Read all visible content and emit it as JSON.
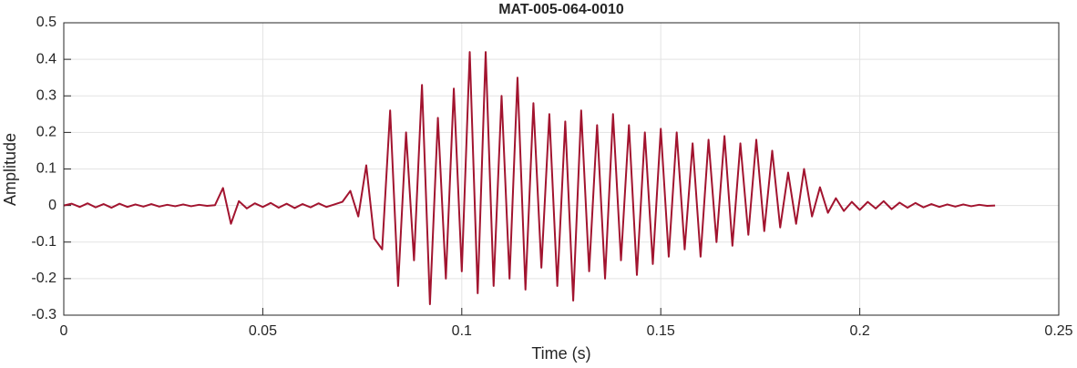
{
  "chart_data": {
    "type": "line",
    "title": "MAT-005-064-0010",
    "xlabel": "Time (s)",
    "ylabel": "Amplitude",
    "x": [
      0,
      0.002,
      0.004,
      0.006,
      0.008,
      0.01,
      0.012,
      0.014,
      0.016,
      0.018,
      0.02,
      0.022,
      0.024,
      0.026,
      0.028,
      0.03,
      0.032,
      0.034,
      0.036,
      0.038,
      0.04,
      0.042,
      0.044,
      0.046,
      0.048,
      0.05,
      0.052,
      0.054,
      0.056,
      0.058,
      0.06,
      0.062,
      0.064,
      0.066,
      0.068,
      0.07,
      0.072,
      0.074,
      0.076,
      0.078,
      0.08,
      0.082,
      0.084,
      0.086,
      0.088,
      0.09,
      0.092,
      0.094,
      0.096,
      0.098,
      0.1,
      0.102,
      0.104,
      0.106,
      0.108,
      0.11,
      0.112,
      0.114,
      0.116,
      0.118,
      0.12,
      0.122,
      0.124,
      0.126,
      0.128,
      0.13,
      0.132,
      0.134,
      0.136,
      0.138,
      0.14,
      0.142,
      0.144,
      0.146,
      0.148,
      0.15,
      0.152,
      0.154,
      0.156,
      0.158,
      0.16,
      0.162,
      0.164,
      0.166,
      0.168,
      0.17,
      0.172,
      0.174,
      0.176,
      0.178,
      0.18,
      0.182,
      0.184,
      0.186,
      0.188,
      0.19,
      0.192,
      0.194,
      0.196,
      0.198,
      0.2,
      0.202,
      0.204,
      0.206,
      0.208,
      0.21,
      0.212,
      0.214,
      0.216,
      0.218,
      0.22,
      0.222,
      0.224,
      0.226,
      0.228,
      0.23,
      0.232,
      0.234
    ],
    "series": [
      {
        "color": "#a2142f",
        "values": [
          0,
          0.005,
          -0.004,
          0.006,
          -0.005,
          0.004,
          -0.006,
          0.005,
          -0.004,
          0.003,
          -0.003,
          0.004,
          -0.003,
          0.002,
          -0.002,
          0.003,
          -0.002,
          0.002,
          -0.001,
          0.001,
          0.048,
          -0.05,
          0.012,
          -0.008,
          0.006,
          -0.004,
          0.007,
          -0.006,
          0.005,
          -0.007,
          0.004,
          -0.005,
          0.006,
          -0.004,
          0.003,
          0.01,
          0.04,
          -0.03,
          0.11,
          -0.09,
          -0.12,
          0.26,
          -0.22,
          0.2,
          -0.15,
          0.33,
          -0.27,
          0.24,
          -0.2,
          0.32,
          -0.18,
          0.42,
          -0.24,
          0.42,
          -0.22,
          0.3,
          -0.2,
          0.35,
          -0.23,
          0.28,
          -0.17,
          0.25,
          -0.22,
          0.23,
          -0.26,
          0.26,
          -0.18,
          0.22,
          -0.2,
          0.25,
          -0.15,
          0.22,
          -0.19,
          0.2,
          -0.16,
          0.21,
          -0.14,
          0.2,
          -0.12,
          0.17,
          -0.14,
          0.18,
          -0.1,
          0.19,
          -0.11,
          0.17,
          -0.08,
          0.18,
          -0.07,
          0.15,
          -0.06,
          0.09,
          -0.05,
          0.1,
          -0.03,
          0.05,
          -0.02,
          0.02,
          -0.015,
          0.01,
          -0.012,
          0.01,
          -0.008,
          0.012,
          -0.01,
          0.008,
          -0.006,
          0.007,
          -0.005,
          0.004,
          -0.004,
          0.003,
          -0.003,
          0.003,
          -0.002,
          0.002,
          -0.001,
          0
        ]
      }
    ],
    "xlim": [
      0,
      0.25
    ],
    "xticks": [
      0,
      0.05,
      0.1,
      0.15,
      0.2,
      0.25
    ],
    "ylim": [
      -0.3,
      0.5
    ],
    "yticks": [
      -0.3,
      -0.2,
      -0.1,
      0,
      0.1,
      0.2,
      0.3,
      0.4,
      0.5
    ],
    "grid": true
  }
}
